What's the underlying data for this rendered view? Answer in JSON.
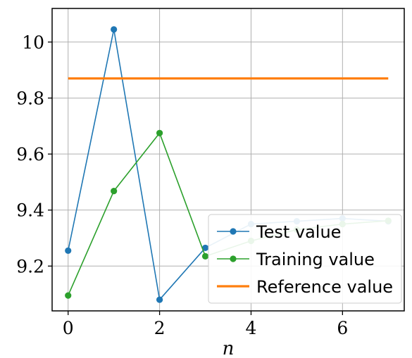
{
  "chart_data": {
    "type": "line",
    "title": "",
    "xlabel": "n",
    "ylabel": "",
    "xlim": [
      -0.35,
      7.35
    ],
    "ylim": [
      9.04,
      10.12
    ],
    "xticks": [
      0,
      2,
      4,
      6
    ],
    "yticks": [
      9.2,
      9.4,
      9.6,
      9.8,
      10.0
    ],
    "xtick_labels": [
      "0",
      "2",
      "4",
      "6"
    ],
    "ytick_labels": [
      "9.2",
      "9.4",
      "9.6",
      "9.8",
      "10"
    ],
    "grid": true,
    "legend_position": "lower-right",
    "series": [
      {
        "name": "Test value",
        "color": "#1f77b4",
        "marker": "circle",
        "x": [
          0,
          1,
          2,
          3,
          4,
          5,
          6,
          7
        ],
        "y": [
          9.255,
          10.045,
          9.08,
          9.265,
          9.35,
          9.36,
          9.37,
          9.36
        ]
      },
      {
        "name": "Training value",
        "color": "#2ca02c",
        "marker": "circle",
        "x": [
          0,
          1,
          2,
          3,
          4,
          5,
          6,
          7
        ],
        "y": [
          9.095,
          9.468,
          9.675,
          9.235,
          9.29,
          9.33,
          9.35,
          9.362
        ]
      },
      {
        "name": "Reference value",
        "color": "#ff7f0e",
        "marker": "none",
        "x": [
          0,
          7
        ],
        "y": [
          9.87,
          9.87
        ]
      }
    ]
  }
}
